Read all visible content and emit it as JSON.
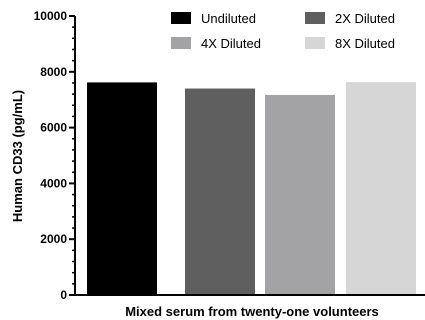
{
  "chart_data": {
    "type": "bar",
    "title": "",
    "xlabel": "Mixed serum from twenty-one volunteers",
    "ylabel": "Human CD33 (pg/mL)",
    "ylim": [
      0,
      10000
    ],
    "yticks": [
      0,
      2000,
      4000,
      6000,
      8000,
      10000
    ],
    "ytick_labels": [
      "0",
      "2000",
      "4000",
      "6000",
      "8000",
      "10000"
    ],
    "grid": false,
    "legend_position": "top",
    "series": [
      {
        "name": "Undiluted",
        "value": 7620,
        "color": "#000000"
      },
      {
        "name": "2X Diluted",
        "value": 7400,
        "color": "#5f5f5f"
      },
      {
        "name": "4X Diluted",
        "value": 7170,
        "color": "#a3a3a5"
      },
      {
        "name": "8X Diluted",
        "value": 7630,
        "color": "#d6d6d6"
      }
    ]
  }
}
